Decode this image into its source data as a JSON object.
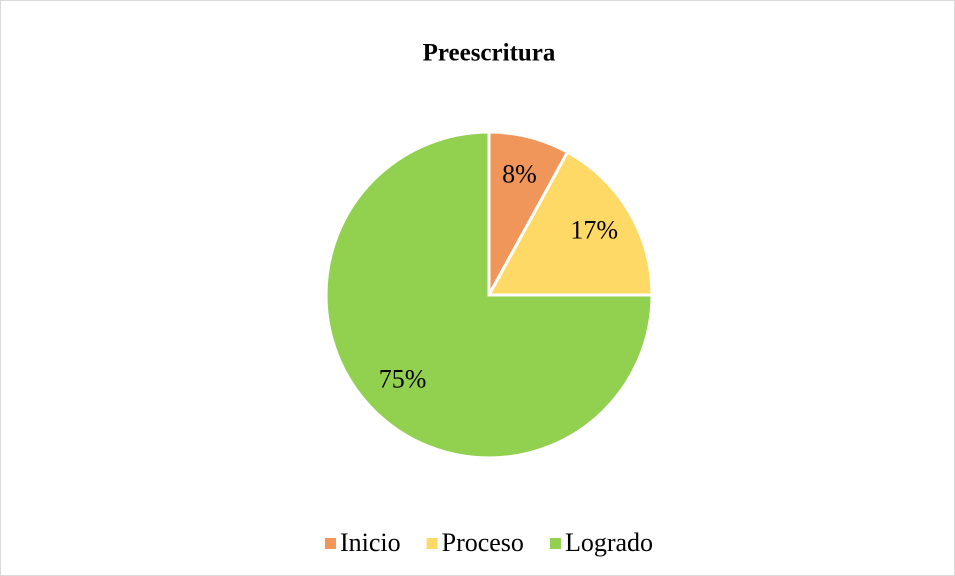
{
  "chart_data": {
    "type": "pie",
    "title": "Preescritura",
    "categories": [
      "Inicio",
      "Proceso",
      "Logrado"
    ],
    "values": [
      8,
      17,
      75
    ],
    "value_labels": [
      "8%",
      "17%",
      "75%"
    ],
    "colors": [
      "#f0965a",
      "#ffd966",
      "#92d050"
    ],
    "legend": "bottom"
  }
}
